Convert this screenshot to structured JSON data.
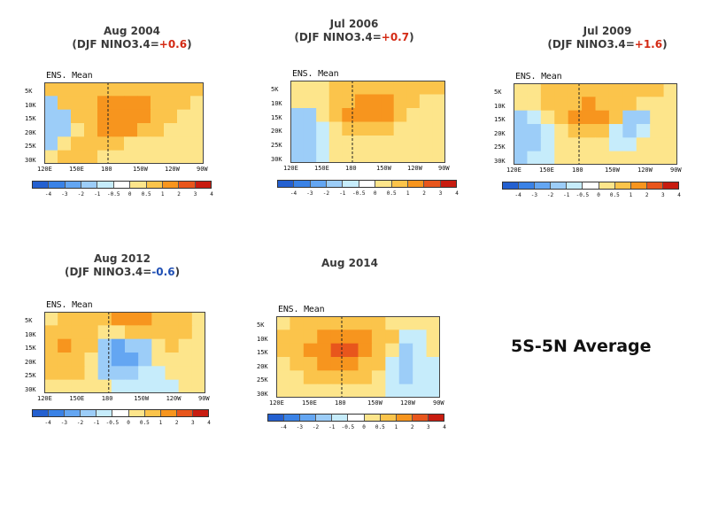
{
  "chart_data": [
    {
      "type": "heatmap",
      "title_line1": "Aug 2004",
      "title_prefix": "(DJF NINO3.4=",
      "nino_value": "+0.6",
      "nino_sign": "pos",
      "title_suffix": ")",
      "ens_label": "ENS. Mean",
      "x_ticks": [
        "120E",
        "150E",
        "180",
        "150W",
        "120W",
        "90W"
      ],
      "y_ticks": [
        "5K",
        "10K",
        "15K",
        "20K",
        "25K",
        "30K"
      ],
      "colorbar_labels": [
        "-4",
        "-3",
        "-2",
        "-1",
        "-0.5",
        "0",
        "0.5",
        "1",
        "2",
        "3",
        "4"
      ],
      "field": [
        [
          0.5,
          0.6,
          0.6,
          0.7,
          0.8,
          0.8,
          0.7,
          0.7,
          0.6,
          0.6,
          0.5,
          0.5
        ],
        [
          -0.6,
          0.5,
          0.6,
          0.8,
          1.1,
          1.3,
          1.2,
          1.0,
          0.8,
          0.6,
          0.5,
          0.4
        ],
        [
          -0.8,
          -0.6,
          0.5,
          0.9,
          1.3,
          1.8,
          1.5,
          1.2,
          0.8,
          0.5,
          0.4,
          0.4
        ],
        [
          -0.6,
          -0.5,
          0.4,
          0.7,
          1.0,
          1.2,
          1.0,
          0.8,
          0.6,
          0.4,
          0.4,
          0.3
        ],
        [
          -0.5,
          0.3,
          0.5,
          0.6,
          0.6,
          0.5,
          0.4,
          0.4,
          0.4,
          0.3,
          0.3,
          0.3
        ],
        [
          0.3,
          0.5,
          0.6,
          0.5,
          0.4,
          0.3,
          0.3,
          0.3,
          0.3,
          0.3,
          0.3,
          0.3
        ]
      ]
    },
    {
      "type": "heatmap",
      "title_line1": "Jul 2006",
      "title_prefix": "(DJF NINO3.4=",
      "nino_value": "+0.7",
      "nino_sign": "pos",
      "title_suffix": ")",
      "ens_label": "ENS. Mean",
      "x_ticks": [
        "120E",
        "150E",
        "180",
        "150W",
        "120W",
        "90W"
      ],
      "y_ticks": [
        "5K",
        "10K",
        "15K",
        "20K",
        "25K",
        "30K"
      ],
      "colorbar_labels": [
        "-4",
        "-3",
        "-2",
        "-1",
        "-0.5",
        "0",
        "0.5",
        "1",
        "2",
        "3",
        "4"
      ],
      "field": [
        [
          0.3,
          0.4,
          0.4,
          0.5,
          0.6,
          0.7,
          0.8,
          0.8,
          0.7,
          0.6,
          0.5,
          0.5
        ],
        [
          0.3,
          0.3,
          0.4,
          0.6,
          0.9,
          1.2,
          1.5,
          1.2,
          0.9,
          0.6,
          0.4,
          0.4
        ],
        [
          -0.6,
          -0.5,
          0.3,
          0.7,
          1.2,
          1.8,
          1.5,
          1.0,
          0.7,
          0.4,
          0.3,
          0.4
        ],
        [
          -0.7,
          -0.6,
          -0.3,
          0.4,
          0.7,
          0.8,
          0.7,
          0.5,
          0.4,
          0.3,
          0.3,
          0.3
        ],
        [
          -0.6,
          -0.6,
          -0.4,
          0.3,
          0.4,
          0.4,
          0.3,
          0.3,
          0.3,
          0.3,
          0.3,
          0.3
        ],
        [
          -0.5,
          -0.5,
          -0.3,
          0.3,
          0.3,
          0.3,
          0.3,
          0.3,
          0.3,
          0.3,
          0.3,
          0.3
        ]
      ]
    },
    {
      "type": "heatmap",
      "title_line1": "Jul 2009",
      "title_prefix": "(DJF NINO3.4=",
      "nino_value": "+1.6",
      "nino_sign": "pos",
      "title_suffix": ")",
      "ens_label": "ENS. Mean",
      "x_ticks": [
        "120E",
        "150E",
        "180",
        "150W",
        "120W",
        "90W"
      ],
      "y_ticks": [
        "5K",
        "10K",
        "15K",
        "20K",
        "25K",
        "30K"
      ],
      "colorbar_labels": [
        "-4",
        "-3",
        "-2",
        "-1",
        "-0.5",
        "0",
        "0.5",
        "1",
        "2",
        "3",
        "4"
      ],
      "field": [
        [
          0.3,
          0.4,
          0.5,
          0.6,
          0.7,
          0.8,
          0.8,
          0.7,
          0.6,
          0.5,
          0.5,
          0.4
        ],
        [
          0.3,
          0.4,
          0.5,
          0.6,
          0.9,
          1.0,
          0.9,
          0.7,
          0.5,
          0.4,
          0.3,
          0.3
        ],
        [
          -0.5,
          -0.4,
          0.3,
          0.6,
          1.0,
          1.6,
          1.2,
          0.6,
          -0.5,
          -0.6,
          0.3,
          0.3
        ],
        [
          -0.6,
          -0.5,
          -0.3,
          0.4,
          0.6,
          0.6,
          0.5,
          -0.4,
          -0.5,
          -0.4,
          0.3,
          0.3
        ],
        [
          -0.6,
          -0.5,
          -0.4,
          0.3,
          0.4,
          0.4,
          0.3,
          -0.3,
          -0.4,
          0.3,
          0.3,
          0.3
        ],
        [
          -0.5,
          -0.4,
          -0.3,
          0.3,
          0.3,
          0.3,
          0.3,
          0.3,
          0.3,
          0.3,
          0.3,
          0.3
        ]
      ]
    },
    {
      "type": "heatmap",
      "title_line1": "Aug 2012",
      "title_prefix": "(DJF NINO3.4=",
      "nino_value": "-0.6",
      "nino_sign": "neg",
      "title_suffix": ")",
      "ens_label": "ENS. Mean",
      "x_ticks": [
        "120E",
        "150E",
        "180",
        "150W",
        "120W",
        "90W"
      ],
      "y_ticks": [
        "5K",
        "10K",
        "15K",
        "20K",
        "25K",
        "30K"
      ],
      "colorbar_labels": [
        "-4",
        "-3",
        "-2",
        "-1",
        "-0.5",
        "0",
        "0.5",
        "1",
        "2",
        "3",
        "4"
      ],
      "field": [
        [
          0.4,
          0.5,
          0.5,
          0.6,
          0.8,
          1.0,
          1.2,
          1.0,
          0.8,
          0.6,
          0.5,
          0.4
        ],
        [
          0.8,
          0.9,
          0.8,
          0.6,
          0.4,
          0.4,
          0.6,
          0.8,
          0.7,
          0.6,
          0.5,
          0.4
        ],
        [
          0.9,
          1.1,
          0.9,
          0.6,
          -0.5,
          -1.2,
          -0.9,
          -0.5,
          0.4,
          0.5,
          0.4,
          0.4
        ],
        [
          0.7,
          0.9,
          0.8,
          0.4,
          -0.8,
          -1.5,
          -1.2,
          -0.6,
          0.3,
          0.4,
          0.4,
          0.3
        ],
        [
          0.5,
          0.6,
          0.5,
          0.3,
          -0.5,
          -0.8,
          -0.6,
          -0.4,
          -0.4,
          0.3,
          0.3,
          0.3
        ],
        [
          0.3,
          0.4,
          0.3,
          0.3,
          0.3,
          -0.4,
          -0.4,
          -0.3,
          -0.4,
          -0.3,
          0.3,
          0.3
        ]
      ]
    },
    {
      "type": "heatmap",
      "title_line1": "Aug 2014",
      "title_prefix": "",
      "nino_value": "",
      "nino_sign": "pos",
      "title_suffix": "",
      "ens_label": "ENS. Mean",
      "x_ticks": [
        "120E",
        "150E",
        "180",
        "150W",
        "120W",
        "90W"
      ],
      "y_ticks": [
        "5K",
        "10K",
        "15K",
        "20K",
        "25K",
        "30K"
      ],
      "colorbar_labels": [
        "-4",
        "-3",
        "-2",
        "-1",
        "-0.5",
        "0",
        "0.5",
        "1",
        "2",
        "3",
        "4"
      ],
      "field": [
        [
          0.4,
          0.5,
          0.6,
          0.7,
          0.8,
          0.7,
          0.6,
          0.5,
          0.4,
          0.4,
          0.4,
          0.4
        ],
        [
          0.5,
          0.6,
          0.8,
          1.2,
          1.6,
          1.4,
          1.0,
          0.7,
          0.5,
          -0.4,
          -0.4,
          0.3
        ],
        [
          0.5,
          0.7,
          1.1,
          1.8,
          2.4,
          2.0,
          1.4,
          0.8,
          0.4,
          -0.5,
          -0.4,
          0.3
        ],
        [
          0.4,
          0.6,
          0.9,
          1.4,
          1.8,
          1.4,
          0.9,
          0.6,
          -0.3,
          -0.5,
          -0.4,
          -0.3
        ],
        [
          0.3,
          0.4,
          0.6,
          0.8,
          0.8,
          0.6,
          0.5,
          0.3,
          -0.4,
          -0.5,
          -0.4,
          -0.3
        ],
        [
          0.3,
          0.3,
          0.4,
          0.4,
          0.4,
          0.3,
          0.3,
          0.3,
          -0.3,
          -0.4,
          -0.3,
          -0.3
        ]
      ]
    }
  ],
  "colorbar_colors": [
    "#2460d0",
    "#3a82e6",
    "#64a6f2",
    "#9ccdf8",
    "#c6ecfb",
    "#ffffff",
    "#fde58b",
    "#fbc44b",
    "#f7951e",
    "#e8561c",
    "#c81c10"
  ],
  "footer_label": "5S-5N Average"
}
